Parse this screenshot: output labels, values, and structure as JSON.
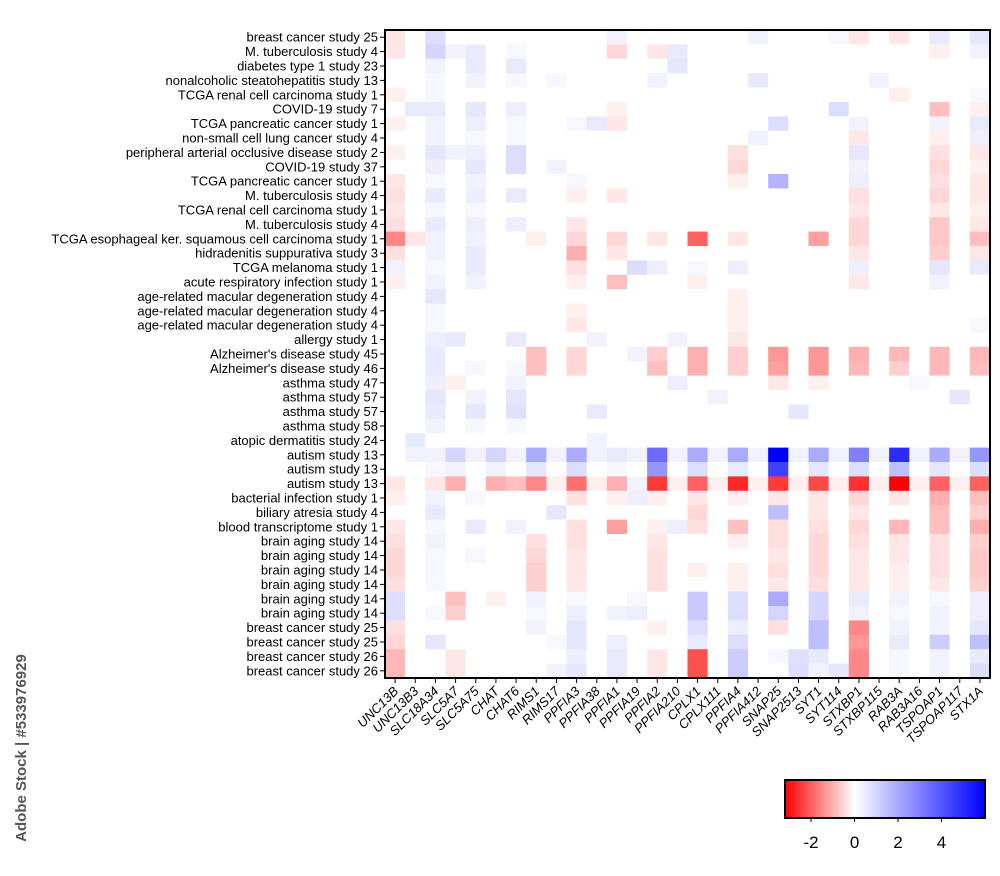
{
  "chart_data": {
    "type": "heatmap",
    "watermark": "Adobe Stock | #533976929",
    "y_categories": [
      "breast cancer study 25",
      "M. tuberculosis study 4",
      "diabetes type 1 study 23",
      "nonalcoholic steatohepatitis study 13",
      "TCGA renal cell carcinoma study 1",
      "COVID-19 study 7",
      "TCGA pancreatic cancer study 1",
      "non-small cell lung cancer study 4",
      "peripheral arterial occlusive disease study 2",
      "COVID-19 study 37",
      "TCGA pancreatic cancer study 1",
      "M. tuberculosis study 4",
      "TCGA renal cell carcinoma study 1",
      "M. tuberculosis study 4",
      "TCGA esophageal ker. squamous cell carcinoma study 1",
      "hidradenitis suppurativa study 3",
      "TCGA melanoma study 1",
      "acute respiratory infection study 1",
      "age-related macular degeneration study 4",
      "age-related macular degeneration study 4",
      "age-related macular degeneration study 4",
      "allergy study 1",
      "Alzheimer's disease study 45",
      "Alzheimer's disease study 46",
      "asthma study 47",
      "asthma study 57",
      "asthma study 57",
      "asthma study 58",
      "atopic dermatitis study 24",
      "autism study 13",
      "autism study 13",
      "autism study 13",
      "bacterial infection study 1",
      "biliary atresia study 4",
      "blood transcriptome study 1",
      "brain aging study 14",
      "brain aging study 14",
      "brain aging study 14",
      "brain aging study 14",
      "brain aging study 14",
      "brain aging study 14",
      "breast cancer study 25",
      "breast cancer study 25",
      "breast cancer study 26",
      "breast cancer study 26"
    ],
    "x_categories": [
      "UNC13B",
      "UNC13B3",
      "SLC18A34",
      "SLC5A7",
      "SLC5A75",
      "CHAT",
      "CHAT6",
      "RIMS1",
      "RIMS17",
      "PPFIA3",
      "PPFIA38",
      "PPFIA1",
      "PPFIA19",
      "PPFIA2",
      "PPFIA210",
      "CPLX1",
      "CPLX111",
      "PPFIA4",
      "PPFIA412",
      "SNAP25",
      "SNAP2513",
      "SYT1",
      "SYT114",
      "STXBP1",
      "STXBP115",
      "RAB3A",
      "RAB3A16",
      "TSPOAP1",
      "TSPOAP117",
      "STX1A"
    ],
    "values": [
      [
        -0.3,
        0,
        0.8,
        0,
        0,
        0,
        0,
        0,
        0,
        0,
        0,
        0.3,
        0,
        0,
        0,
        0,
        0,
        0,
        0.3,
        0,
        0,
        0,
        0.2,
        -0.3,
        0,
        -0.3,
        0,
        0.5,
        0,
        0.6
      ],
      [
        -0.3,
        0,
        1,
        0.3,
        0.5,
        0,
        0.2,
        0,
        0,
        0,
        0,
        -0.5,
        0,
        -0.3,
        0.5,
        0,
        0,
        0,
        0,
        0,
        0,
        0,
        0,
        0,
        0,
        0,
        0,
        -0.2,
        0,
        0.3
      ],
      [
        0,
        0,
        0.3,
        0,
        0.5,
        0,
        0.5,
        0,
        0,
        0,
        0,
        0,
        0,
        0,
        0.6,
        0,
        0,
        0,
        0,
        0,
        0,
        0,
        0,
        0,
        0,
        0,
        0,
        0,
        0,
        0
      ],
      [
        0,
        0,
        0.2,
        0,
        0.3,
        0,
        0.2,
        0,
        0.2,
        0,
        0,
        0,
        0,
        0.3,
        0,
        0,
        0,
        0,
        0.5,
        0,
        0,
        0,
        0,
        0,
        0.3,
        0,
        0,
        0,
        0,
        0
      ],
      [
        -0.2,
        0,
        0.2,
        0,
        0,
        0,
        0,
        0,
        0,
        0,
        0,
        0,
        0,
        0,
        0,
        0,
        0,
        0,
        0,
        0,
        0,
        0,
        0,
        0,
        0,
        -0.2,
        0,
        0,
        0,
        0.2
      ],
      [
        0,
        0.5,
        0.5,
        0,
        0.6,
        0,
        0.4,
        0,
        0,
        0,
        0,
        -0.2,
        0,
        0,
        0,
        0,
        0,
        0,
        0,
        0,
        0,
        0,
        0.8,
        0,
        0,
        0,
        0,
        -0.8,
        0,
        -0.2
      ],
      [
        -0.2,
        0,
        0.3,
        0,
        0.4,
        0,
        0.2,
        0,
        0,
        0.2,
        0.5,
        -0.3,
        0,
        0,
        0,
        0,
        0,
        0,
        0,
        0.8,
        0,
        0,
        0,
        0.3,
        0,
        0,
        0,
        0.3,
        0,
        0.5
      ],
      [
        0,
        0,
        0.3,
        0,
        0.2,
        0,
        0.2,
        0,
        0,
        0,
        0,
        0,
        0,
        0,
        0,
        0,
        0,
        0,
        0.3,
        0,
        0,
        0,
        0,
        -0.3,
        0,
        0,
        0,
        -0.2,
        0,
        0.4
      ],
      [
        -0.2,
        0,
        0.6,
        0.3,
        0.4,
        0,
        0.8,
        0,
        0,
        0,
        0,
        0,
        0,
        0,
        0,
        0,
        0,
        -0.4,
        0,
        0,
        0,
        0,
        0,
        0.6,
        0,
        0,
        0,
        -0.4,
        0,
        -0.3
      ],
      [
        0,
        0,
        0.4,
        0,
        0.6,
        0,
        0.8,
        0,
        0.3,
        0,
        0,
        0,
        0,
        0,
        0,
        0,
        0,
        -0.5,
        0,
        0,
        0,
        0,
        0,
        0.3,
        0,
        0,
        0,
        -0.5,
        0,
        -0.2
      ],
      [
        -0.3,
        0,
        0.2,
        0,
        0.3,
        0,
        0,
        0,
        0,
        0.2,
        0,
        0,
        0,
        0,
        0,
        0,
        0,
        -0.2,
        0,
        1.8,
        0,
        0,
        0,
        0.4,
        0,
        0,
        0,
        -0.4,
        0,
        -0.3
      ],
      [
        -0.4,
        0,
        0.5,
        0,
        0.4,
        0,
        0.5,
        0,
        0,
        -0.2,
        0,
        -0.3,
        0,
        0,
        0,
        0,
        0,
        0,
        0,
        0,
        0,
        0,
        0,
        -0.4,
        0,
        0,
        0,
        -0.5,
        0,
        -0.3
      ],
      [
        -0.3,
        0,
        0.2,
        0,
        0.2,
        0,
        0,
        0,
        0,
        0,
        0,
        0,
        0,
        0,
        0,
        0,
        0,
        0,
        0,
        0,
        0,
        0,
        0,
        -0.3,
        0,
        0,
        0,
        -0.3,
        0,
        -0.2
      ],
      [
        -0.4,
        0,
        0.5,
        0,
        0.4,
        0,
        0.4,
        0,
        0,
        -0.3,
        0,
        0,
        0,
        0,
        0,
        0,
        0,
        0,
        0,
        0,
        0,
        0,
        0,
        -0.5,
        0,
        0,
        0,
        -0.7,
        0,
        -0.3
      ],
      [
        -1.5,
        -0.3,
        0.3,
        0,
        0.3,
        0,
        0,
        -0.2,
        0,
        -0.5,
        0,
        -0.5,
        0,
        -0.3,
        0,
        -2,
        0,
        -0.3,
        0,
        0,
        0,
        -1.2,
        0,
        -0.5,
        0,
        0,
        0,
        -0.7,
        0,
        -0.8
      ],
      [
        -0.4,
        0,
        0.3,
        0,
        0.5,
        0,
        0,
        0,
        0,
        -1,
        0,
        -0.3,
        0,
        0,
        0,
        0,
        0,
        0,
        0,
        0,
        0,
        0,
        0,
        -0.3,
        0,
        0,
        0,
        -0.6,
        0,
        -0.3
      ],
      [
        0.3,
        0,
        0.2,
        0,
        0.5,
        0,
        0,
        0,
        0,
        -0.4,
        0,
        0,
        0.8,
        0.4,
        0,
        0.2,
        0,
        0.4,
        0,
        0,
        0,
        0,
        0,
        0.4,
        0,
        0,
        0,
        0.6,
        0,
        0.5
      ],
      [
        -0.2,
        0,
        0.3,
        0,
        0.3,
        0,
        0,
        0,
        0,
        -0.2,
        0,
        -0.8,
        0,
        0,
        0,
        -0.2,
        0,
        0,
        0,
        0,
        0,
        0,
        0,
        -0.3,
        0,
        0,
        0,
        0.3,
        0,
        0
      ],
      [
        0,
        0,
        0.6,
        0,
        0,
        0,
        0,
        0,
        0,
        0,
        0,
        0,
        0,
        0,
        0,
        0,
        0,
        -0.2,
        0,
        0,
        0,
        0,
        0,
        0,
        0,
        0,
        0,
        0,
        0,
        0
      ],
      [
        0,
        0,
        0.2,
        0,
        0,
        0,
        0,
        0,
        0,
        -0.2,
        0,
        0,
        0,
        0,
        0,
        0,
        0,
        -0.2,
        0,
        0,
        0,
        0,
        0,
        0,
        0,
        0,
        0,
        0,
        0,
        0
      ],
      [
        0,
        0,
        0.2,
        0,
        0,
        0,
        0,
        0,
        0,
        -0.3,
        0,
        0,
        0,
        0,
        0,
        0,
        0,
        -0.2,
        0,
        0,
        0,
        0,
        0,
        0,
        0,
        0,
        0,
        0,
        0,
        0.2
      ],
      [
        0,
        0,
        0.4,
        0.5,
        0,
        0,
        0.5,
        0,
        0,
        0,
        0.3,
        0,
        0,
        0,
        0.3,
        0,
        0,
        -0.3,
        0,
        0,
        0,
        0,
        0,
        0,
        0,
        0,
        0,
        0,
        0,
        0
      ],
      [
        0,
        0,
        0.5,
        0,
        0,
        0,
        0,
        -0.8,
        0,
        -0.5,
        0,
        0,
        0.3,
        -0.6,
        0,
        -1,
        0,
        -0.6,
        0,
        -1.3,
        0,
        -1.3,
        0,
        -1,
        0,
        -0.9,
        0,
        -0.9,
        0,
        -0.9
      ],
      [
        0,
        0,
        0.5,
        0,
        0.2,
        0,
        0.2,
        -0.8,
        0,
        -0.5,
        0,
        0,
        0,
        -0.8,
        0,
        -1,
        0,
        -0.6,
        0,
        -1.2,
        0,
        -1.3,
        0,
        -0.9,
        0,
        -0.6,
        0,
        -0.9,
        0,
        -0.8
      ],
      [
        0,
        0,
        0.4,
        -0.2,
        0,
        0,
        0.3,
        0,
        0,
        0,
        0,
        0,
        0,
        0,
        0.4,
        0,
        0,
        0,
        0,
        -0.3,
        0,
        -0.2,
        0,
        0,
        0,
        0,
        0.2,
        0,
        0,
        0
      ],
      [
        0,
        0,
        0.6,
        0,
        0.3,
        0,
        0.6,
        0,
        0,
        0,
        0,
        0,
        0,
        0,
        0,
        0,
        0.3,
        0,
        0,
        0,
        0,
        0,
        0,
        0,
        0,
        0,
        0,
        0,
        0.6,
        0
      ],
      [
        0,
        0,
        0.5,
        0,
        0.6,
        0,
        0.7,
        0,
        0,
        0,
        0.5,
        0,
        0,
        0,
        0,
        0,
        0,
        0,
        0,
        0,
        0.6,
        0,
        0,
        0,
        0,
        0,
        0,
        0,
        0,
        0
      ],
      [
        0,
        0,
        0.3,
        0,
        0.2,
        0,
        0.2,
        0,
        0,
        0,
        0,
        0,
        0,
        0,
        0,
        0,
        0,
        0,
        0,
        0,
        0,
        0,
        0,
        0,
        0,
        0,
        0,
        0,
        0,
        0
      ],
      [
        0,
        0.5,
        0,
        0,
        0,
        0,
        0,
        0,
        0,
        0,
        0.3,
        0,
        0,
        0,
        0,
        0,
        0,
        0,
        0,
        0,
        0,
        0,
        0,
        0,
        0,
        0,
        0,
        0,
        0,
        0
      ],
      [
        0,
        0.3,
        0.3,
        1,
        0.3,
        1,
        0.3,
        2,
        0.3,
        2,
        0.3,
        0.5,
        0.3,
        3.5,
        0.3,
        2,
        0.3,
        2,
        0.3,
        6,
        0.3,
        2,
        0.3,
        3,
        0.3,
        5,
        0.3,
        2,
        0.3,
        2.5
      ],
      [
        0,
        0,
        0.2,
        0.3,
        0,
        0.3,
        0,
        0.6,
        0,
        0.8,
        0,
        0.2,
        0,
        2.5,
        0,
        0.8,
        0,
        0.5,
        0,
        4.5,
        0,
        0.6,
        0,
        0.8,
        0,
        1.5,
        0,
        0.6,
        0,
        0.8
      ],
      [
        -0.3,
        0,
        -0.3,
        -1,
        0,
        -1,
        -0.8,
        -1.5,
        -0.2,
        -1.8,
        -0.2,
        -1,
        0.3,
        -2.5,
        -0.2,
        -2,
        -0.2,
        -2.7,
        -0.2,
        -2.5,
        -0.2,
        -2.3,
        -0.2,
        -2.6,
        -0.2,
        -3.2,
        -0.2,
        -2,
        -0.2,
        -2
      ],
      [
        -0.2,
        0,
        0.3,
        0,
        0.2,
        0,
        0,
        0,
        0,
        -0.4,
        0,
        -0.2,
        0.4,
        -0.2,
        0,
        -0.3,
        0,
        -0.2,
        0,
        -0.3,
        0,
        -0.3,
        0,
        -0.5,
        0,
        -0.3,
        0,
        -1,
        0,
        -0.8
      ],
      [
        0,
        0,
        0.5,
        0,
        0,
        0,
        0,
        0,
        0.6,
        0,
        0,
        0,
        0,
        0,
        0,
        -0.5,
        0,
        0,
        0,
        1.5,
        0,
        -0.3,
        0,
        -0.3,
        0,
        0,
        0,
        -0.8,
        0,
        -0.6
      ],
      [
        -0.3,
        0,
        0.2,
        0,
        0.5,
        0,
        0.3,
        0,
        0,
        -0.4,
        0,
        -1.2,
        0,
        -0.2,
        0.4,
        -0.4,
        0,
        -0.8,
        0,
        -0.4,
        0,
        -0.4,
        0,
        -0.5,
        0,
        -0.9,
        0,
        -0.8,
        0,
        -1
      ],
      [
        -0.4,
        0,
        0.3,
        0,
        0,
        0,
        0,
        -0.4,
        0,
        -0.4,
        0,
        0,
        0,
        -0.3,
        0,
        0,
        0,
        -0.2,
        0,
        -0.4,
        0,
        -0.5,
        0,
        -0.4,
        0,
        -0.3,
        0,
        -0.4,
        0,
        -0.6
      ],
      [
        -0.5,
        0,
        0.2,
        0,
        0.2,
        0,
        0,
        -0.5,
        0,
        -0.3,
        0,
        0,
        0,
        -0.4,
        0,
        0,
        0,
        0,
        0,
        -0.3,
        0,
        -0.5,
        0,
        -0.3,
        0,
        -0.3,
        0,
        -0.4,
        0,
        -0.7
      ],
      [
        -0.5,
        0,
        0.2,
        0,
        0,
        0,
        0,
        -0.6,
        0,
        -0.3,
        0,
        0,
        0,
        -0.4,
        0,
        -0.2,
        0,
        -0.2,
        0,
        -0.4,
        0,
        -0.5,
        0,
        -0.3,
        0,
        -0.2,
        0,
        -0.4,
        0,
        -0.7
      ],
      [
        -0.4,
        0,
        0.2,
        0,
        0,
        0,
        0,
        -0.6,
        0,
        -0.3,
        0,
        0,
        0,
        -0.4,
        0,
        0,
        0,
        -0.2,
        0,
        -0.3,
        0,
        -0.4,
        0,
        -0.3,
        0,
        -0.2,
        0,
        -0.3,
        0,
        -0.6
      ],
      [
        0.8,
        0,
        0,
        -0.8,
        0,
        -0.2,
        0,
        0.3,
        0,
        0.2,
        0,
        0,
        0.2,
        0,
        0,
        1.3,
        0,
        0.8,
        0,
        2,
        0,
        1,
        0,
        0.5,
        0,
        0.3,
        0,
        0.2,
        0,
        0.4
      ],
      [
        0.8,
        0,
        0.2,
        -0.6,
        0,
        0,
        0,
        0.2,
        0,
        0.4,
        0,
        0.3,
        0.4,
        0,
        0,
        1.3,
        0,
        0.8,
        0,
        1,
        0,
        1,
        0,
        0.3,
        0,
        0.2,
        0,
        0.3,
        0,
        0.4
      ],
      [
        -0.4,
        0,
        0,
        0,
        0,
        0,
        0,
        0.3,
        0,
        0.6,
        0,
        0,
        0,
        -0.2,
        0,
        0.8,
        0,
        0.4,
        0,
        -0.4,
        0,
        1.5,
        0,
        -1.5,
        0,
        0.3,
        0,
        0.3,
        0,
        0.6
      ],
      [
        -0.5,
        0,
        0.6,
        0,
        0,
        0,
        0,
        0,
        0.2,
        0.6,
        0,
        0.4,
        0,
        0,
        0,
        0.5,
        0,
        0.8,
        0,
        0,
        0,
        1.5,
        0,
        -1.3,
        0,
        0.5,
        0,
        1.2,
        0,
        1.5
      ],
      [
        -0.9,
        0,
        0,
        -0.3,
        0,
        0,
        0,
        0,
        0,
        0.4,
        0,
        0.5,
        0,
        -0.3,
        0,
        -2.2,
        0,
        1.2,
        0,
        0.2,
        0.7,
        0.5,
        0,
        -1.5,
        0,
        0.2,
        0,
        0.3,
        0,
        0.5
      ],
      [
        -0.9,
        0,
        0,
        -0.3,
        0,
        0,
        0,
        0,
        0.3,
        0.6,
        0,
        0.5,
        0,
        -0.3,
        0,
        -2.2,
        0,
        1.2,
        0,
        0,
        0.8,
        0.3,
        0.6,
        -1.5,
        0,
        0.2,
        0,
        0.3,
        0,
        0.8
      ]
    ],
    "clim": [
      -3.2,
      6
    ],
    "cticks": [
      -2,
      0,
      2,
      4
    ],
    "colors": {
      "low": "#ff0000",
      "mid": "#ffffff",
      "high": "#0000ff"
    }
  }
}
